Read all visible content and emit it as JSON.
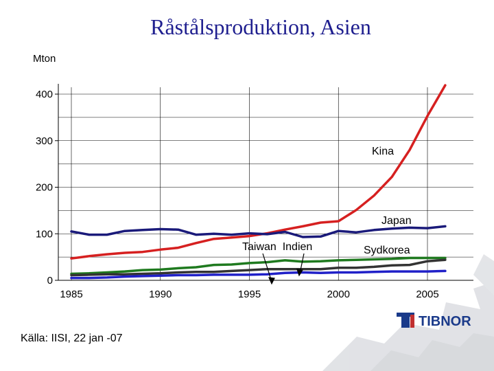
{
  "chart_data": {
    "type": "line",
    "title": "Råstålsproduktion, Asien",
    "ylabel": "Mton",
    "xlim": [
      1985,
      2006
    ],
    "ylim": [
      0,
      400
    ],
    "x_ticks": [
      "1985",
      "1990",
      "1995",
      "2000",
      "2005"
    ],
    "y_ticks": [
      "0",
      "100",
      "200",
      "300",
      "400"
    ],
    "x": [
      1985,
      1986,
      1987,
      1988,
      1989,
      1990,
      1991,
      1992,
      1993,
      1994,
      1995,
      1996,
      1997,
      1998,
      1999,
      2000,
      2001,
      2002,
      2003,
      2004,
      2005,
      2006
    ],
    "series": [
      {
        "name": "Kina",
        "color": "#d62020",
        "values": [
          47,
          52,
          56,
          59,
          61,
          66,
          70,
          80,
          89,
          92,
          95,
          101,
          109,
          116,
          124,
          127,
          151,
          182,
          222,
          280,
          353,
          419
        ]
      },
      {
        "name": "Japan",
        "color": "#1a1a7a",
        "values": [
          105,
          98,
          98,
          106,
          108,
          110,
          109,
          98,
          100,
          98,
          101,
          99,
          104,
          93,
          94,
          106,
          103,
          108,
          111,
          113,
          112,
          116
        ]
      },
      {
        "name": "Sydkorea",
        "color": "#1f7a1f",
        "values": [
          14,
          15,
          17,
          19,
          22,
          23,
          26,
          28,
          33,
          34,
          37,
          39,
          43,
          40,
          41,
          43,
          44,
          45,
          46,
          48,
          48,
          48
        ]
      },
      {
        "name": "Indien",
        "color": "#333333",
        "values": [
          11,
          12,
          13,
          13,
          14,
          15,
          17,
          18,
          18,
          20,
          22,
          24,
          24,
          24,
          24,
          27,
          27,
          29,
          32,
          33,
          41,
          44
        ]
      },
      {
        "name": "Taiwan",
        "color": "#2020c8",
        "values": [
          5,
          5,
          6,
          8,
          9,
          10,
          11,
          11,
          12,
          12,
          12,
          13,
          16,
          17,
          16,
          17,
          17,
          18,
          19,
          19,
          19,
          20
        ]
      }
    ],
    "labels": {
      "kina": "Kina",
      "japan": "Japan",
      "taiwan_indien": "Taiwan  Indien",
      "sydkorea": "Sydkorea"
    },
    "grid": "horizontal",
    "source": "Källa: IISI, 22 jan -07"
  },
  "branding": {
    "logo_text": "TIBNOR",
    "logo_color": "#1a3a8a",
    "logo_icon": "tibnor-logo-icon"
  }
}
